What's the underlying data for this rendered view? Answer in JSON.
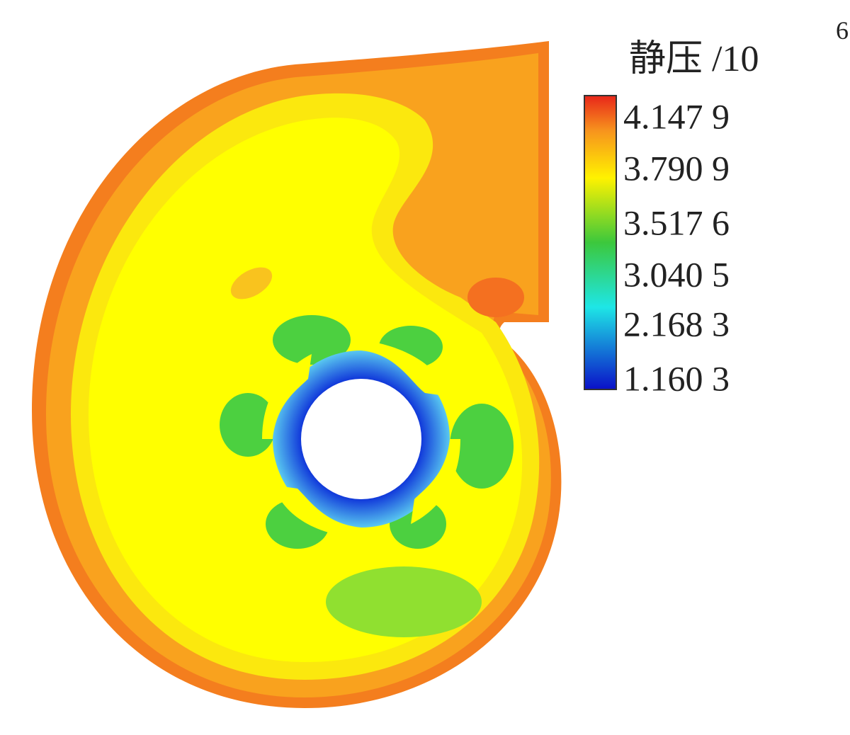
{
  "legend": {
    "title": "静压 /10",
    "exponent": "6",
    "labels": [
      "4.147 9",
      "3.790 9",
      "3.517 6",
      "3.040 5",
      "2.168 3",
      "1.160 3"
    ]
  }
}
